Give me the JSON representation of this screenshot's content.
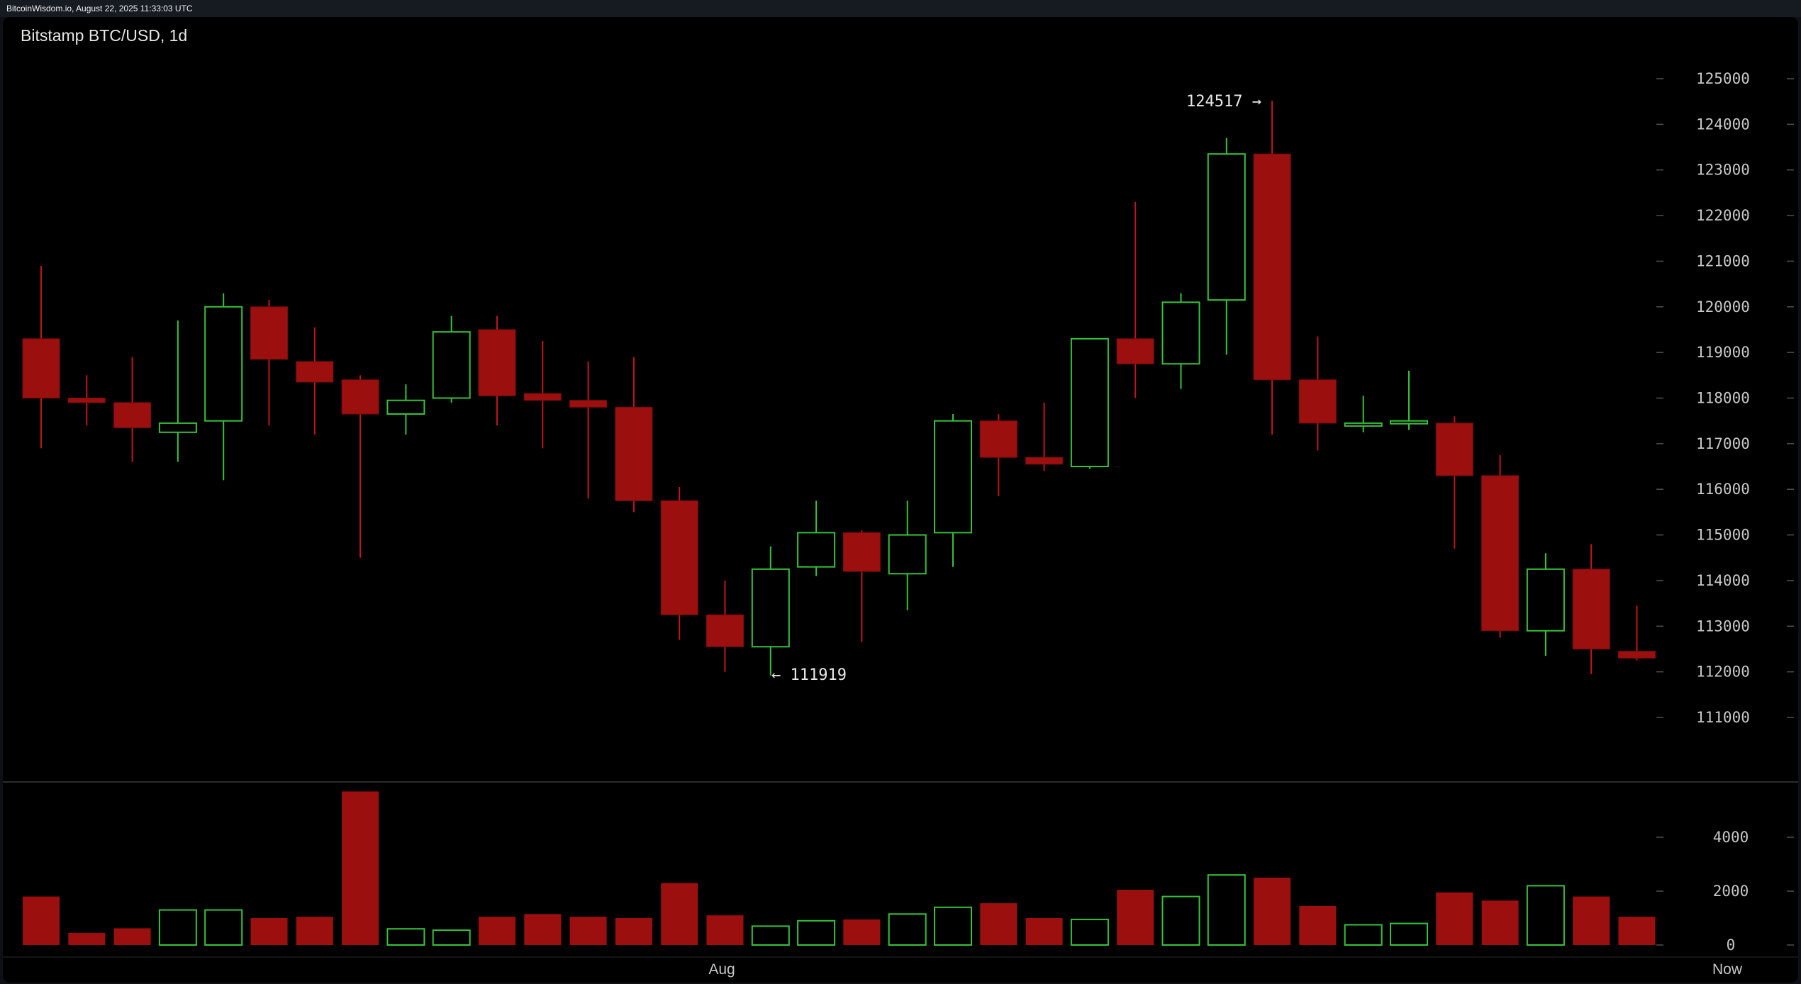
{
  "header": {
    "timestamp_text": "BitcoinWisdom.io, August 22, 2025 11:33:03 UTC"
  },
  "chart": {
    "title": "Bitstamp BTC/USD, 1d"
  },
  "colors": {
    "up": "#36c23a",
    "down": "#9b0f0f",
    "wick_down": "#c0161d",
    "text": "#c8c8c8",
    "tick": "#505050"
  },
  "chart_data": {
    "type": "candlestick",
    "title": "Bitstamp BTC/USD, 1d",
    "price_axis": {
      "ticks": [
        111000,
        112000,
        113000,
        114000,
        115000,
        116000,
        117000,
        118000,
        119000,
        120000,
        121000,
        122000,
        123000,
        124000,
        125000
      ]
    },
    "volume_axis": {
      "ticks": [
        0,
        2000,
        4000
      ]
    },
    "x_labels": [
      "Aug",
      "Now"
    ],
    "annotations": [
      {
        "text": "124517 →",
        "value": 124517
      },
      {
        "text": "← 111919",
        "value": 111919
      }
    ],
    "candles": [
      {
        "open": 119300,
        "high": 120900,
        "low": 116900,
        "close": 118000,
        "volume": 1800
      },
      {
        "open": 118000,
        "high": 118500,
        "low": 117400,
        "close": 117900,
        "volume": 450
      },
      {
        "open": 117900,
        "high": 118900,
        "low": 116600,
        "close": 117350,
        "volume": 620
      },
      {
        "open": 117250,
        "high": 119700,
        "low": 116600,
        "close": 117450,
        "volume": 1300
      },
      {
        "open": 117500,
        "high": 120300,
        "low": 116200,
        "close": 120000,
        "volume": 1300
      },
      {
        "open": 120000,
        "high": 120150,
        "low": 117400,
        "close": 118850,
        "volume": 1000
      },
      {
        "open": 118800,
        "high": 119550,
        "low": 117200,
        "close": 118350,
        "volume": 1050
      },
      {
        "open": 118400,
        "high": 118500,
        "low": 114500,
        "close": 117650,
        "volume": 5700
      },
      {
        "open": 117650,
        "high": 118300,
        "low": 117200,
        "close": 117950,
        "volume": 600
      },
      {
        "open": 118000,
        "high": 119800,
        "low": 117900,
        "close": 119450,
        "volume": 550
      },
      {
        "open": 119500,
        "high": 119800,
        "low": 117400,
        "close": 118050,
        "volume": 1050
      },
      {
        "open": 118100,
        "high": 119250,
        "low": 116900,
        "close": 117950,
        "volume": 1150
      },
      {
        "open": 117950,
        "high": 118800,
        "low": 115800,
        "close": 117800,
        "volume": 1050
      },
      {
        "open": 117800,
        "high": 118900,
        "low": 115500,
        "close": 115750,
        "volume": 1000
      },
      {
        "open": 115750,
        "high": 116050,
        "low": 112700,
        "close": 113250,
        "volume": 2300
      },
      {
        "open": 113250,
        "high": 114000,
        "low": 112000,
        "close": 112550,
        "volume": 1100
      },
      {
        "open": 112550,
        "high": 114750,
        "low": 111919,
        "close": 114250,
        "volume": 700
      },
      {
        "open": 114300,
        "high": 115750,
        "low": 114100,
        "close": 115050,
        "volume": 900
      },
      {
        "open": 115050,
        "high": 115100,
        "low": 112650,
        "close": 114200,
        "volume": 950
      },
      {
        "open": 114150,
        "high": 115750,
        "low": 113350,
        "close": 115000,
        "volume": 1150
      },
      {
        "open": 115050,
        "high": 117650,
        "low": 114300,
        "close": 117500,
        "volume": 1400
      },
      {
        "open": 117500,
        "high": 117650,
        "low": 115850,
        "close": 116700,
        "volume": 1550
      },
      {
        "open": 116700,
        "high": 117900,
        "low": 116400,
        "close": 116550,
        "volume": 1000
      },
      {
        "open": 116500,
        "high": 119300,
        "low": 116450,
        "close": 119300,
        "volume": 950
      },
      {
        "open": 119300,
        "high": 122300,
        "low": 118000,
        "close": 118750,
        "volume": 2050
      },
      {
        "open": 118750,
        "high": 120300,
        "low": 118200,
        "close": 120100,
        "volume": 1800
      },
      {
        "open": 120150,
        "high": 123700,
        "low": 118950,
        "close": 123350,
        "volume": 2600
      },
      {
        "open": 123350,
        "high": 124517,
        "low": 117200,
        "close": 118400,
        "volume": 2500
      },
      {
        "open": 118400,
        "high": 119350,
        "low": 116850,
        "close": 117450,
        "volume": 1450
      },
      {
        "open": 117450,
        "high": 118050,
        "low": 117250,
        "close": 117450,
        "volume": 750
      },
      {
        "open": 117450,
        "high": 118600,
        "low": 117300,
        "close": 117500,
        "volume": 800
      },
      {
        "open": 117450,
        "high": 117600,
        "low": 114700,
        "close": 116300,
        "volume": 1950
      },
      {
        "open": 116300,
        "high": 116750,
        "low": 112750,
        "close": 112900,
        "volume": 1650
      },
      {
        "open": 112900,
        "high": 114600,
        "low": 112350,
        "close": 114250,
        "volume": 2200
      },
      {
        "open": 114250,
        "high": 114800,
        "low": 111950,
        "close": 112500,
        "volume": 1800
      },
      {
        "open": 112450,
        "high": 113450,
        "low": 112250,
        "close": 112300,
        "volume": 1050
      }
    ]
  }
}
